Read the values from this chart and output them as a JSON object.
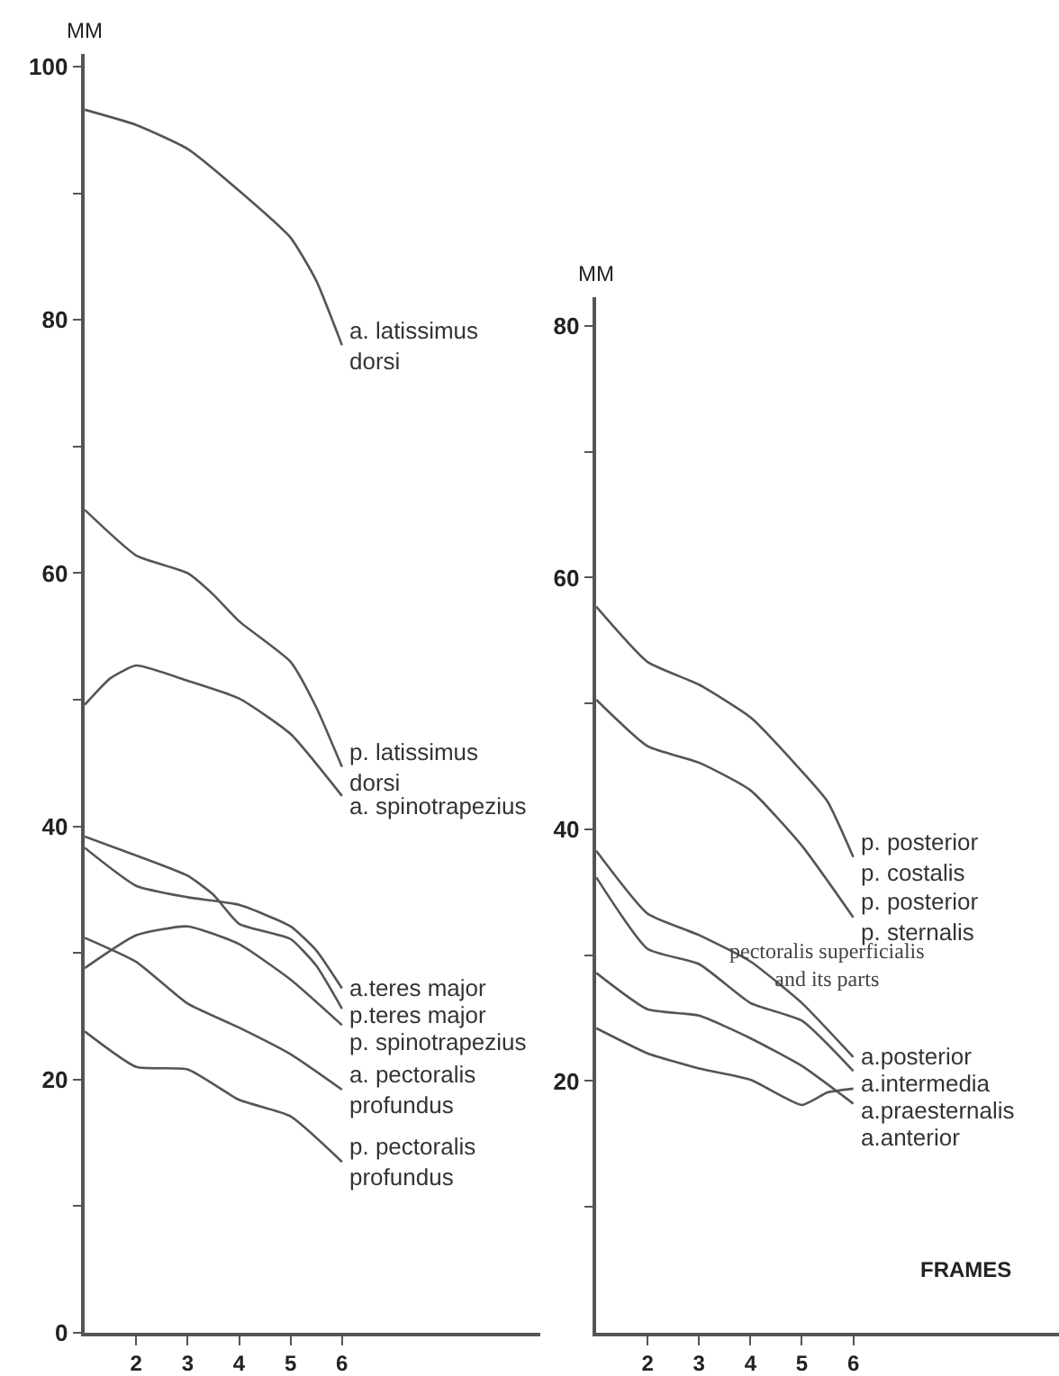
{
  "chart_data": [
    {
      "type": "line",
      "ylabel": "MM",
      "xlim": [
        1,
        9.85
      ],
      "xticks": [
        2,
        3,
        4,
        5,
        6
      ],
      "ylim": [
        0,
        101
      ],
      "yticks": [
        0,
        {
          "value": 10,
          "label": null
        },
        20,
        {
          "value": 30,
          "label": null
        },
        40,
        {
          "value": 50,
          "label": null
        },
        60,
        {
          "value": 70,
          "label": null
        },
        80,
        {
          "value": 90,
          "label": null
        },
        100
      ],
      "series": [
        {
          "name": "a. latissimus\ndorsi",
          "color": "#555555",
          "x": [
            1,
            2,
            3,
            4,
            5,
            5.5,
            6
          ],
          "values": [
            96.6,
            95.4,
            93.5,
            90.2,
            86.5,
            83.1,
            78.0
          ]
        },
        {
          "name": "p. latissimus\ndorsi",
          "color": "#555555",
          "x": [
            1,
            2,
            3,
            3.5,
            4,
            5,
            5.5,
            6
          ],
          "values": [
            65.0,
            61.4,
            60.0,
            58.3,
            56.2,
            53.0,
            49.4,
            44.7
          ]
        },
        {
          "name": "a. spinotrapezius",
          "color": "#555555",
          "x": [
            1,
            1.5,
            2,
            3,
            4,
            5,
            6
          ],
          "values": [
            49.6,
            51.7,
            52.7,
            51.5,
            50.1,
            47.3,
            42.4
          ]
        },
        {
          "name": "a.teres major",
          "color": "#555555",
          "x": [
            1,
            2,
            3,
            4,
            5,
            5.5,
            6
          ],
          "values": [
            38.3,
            35.3,
            34.4,
            33.8,
            32.1,
            30.2,
            27.2
          ]
        },
        {
          "name": "p.teres major",
          "color": "#555555",
          "x": [
            1,
            2,
            3,
            3.5,
            4,
            5,
            5.5,
            6
          ],
          "values": [
            39.2,
            37.7,
            36.1,
            34.6,
            32.3,
            31.1,
            29.0,
            25.6
          ]
        },
        {
          "name": "p. spinotrapezius",
          "color": "#555555",
          "x": [
            1,
            2,
            3,
            4,
            5,
            6
          ],
          "values": [
            28.8,
            31.4,
            32.1,
            30.7,
            27.9,
            24.3
          ]
        },
        {
          "name": "a. pectoralis\nprofundus",
          "color": "#555555",
          "x": [
            1,
            2,
            3,
            4,
            5,
            6
          ],
          "values": [
            31.2,
            29.3,
            26.0,
            24.1,
            22.0,
            19.2
          ]
        },
        {
          "name": "p. pectoralis\nprofundus",
          "color": "#555555",
          "x": [
            1,
            2,
            3,
            4,
            5,
            6
          ],
          "values": [
            23.8,
            21.0,
            20.8,
            18.4,
            17.1,
            13.5
          ]
        }
      ]
    },
    {
      "type": "line",
      "ylabel": "MM",
      "xlabel": "FRAMES",
      "xlim": [
        1,
        10
      ],
      "xticks": [
        2,
        3,
        4,
        5,
        6
      ],
      "ylim": [
        0,
        82.3
      ],
      "yticks": [
        {
          "value": 10,
          "label": null
        },
        20,
        {
          "value": 30,
          "label": null
        },
        40,
        {
          "value": 50,
          "label": null
        },
        60,
        {
          "value": 70,
          "label": null
        },
        80
      ],
      "annotations": [
        "pectoralis superficialis\nand its parts"
      ],
      "series": [
        {
          "name": "p. posterior\np. costalis",
          "color": "#555555",
          "x": [
            1,
            2,
            3,
            4,
            5,
            5.5,
            6
          ],
          "values": [
            57.7,
            53.3,
            51.5,
            48.9,
            44.6,
            42.2,
            37.8
          ]
        },
        {
          "name": "p. posterior\np. sternalis",
          "color": "#555555",
          "x": [
            1,
            2,
            3,
            4,
            5,
            6
          ],
          "values": [
            50.3,
            46.6,
            45.3,
            43.1,
            38.7,
            33.0
          ]
        },
        {
          "name": "a.posterior",
          "color": "#555555",
          "x": [
            1,
            2,
            3,
            4,
            5,
            6
          ],
          "values": [
            38.3,
            33.3,
            31.6,
            29.5,
            26.2,
            21.9
          ]
        },
        {
          "name": "a.intermedia",
          "color": "#555555",
          "x": [
            1,
            2,
            3,
            4,
            5,
            6
          ],
          "values": [
            36.2,
            30.5,
            29.3,
            26.2,
            24.8,
            20.8
          ]
        },
        {
          "name": "a.praesternalis",
          "color": "#555555",
          "x": [
            1,
            2,
            3,
            4,
            5,
            5.5,
            6
          ],
          "values": [
            24.2,
            22.2,
            21.0,
            20.1,
            18.1,
            19.1,
            19.4
          ]
        },
        {
          "name": "a.anterior",
          "color": "#555555",
          "x": [
            1,
            2,
            3,
            4,
            5,
            6
          ],
          "values": [
            28.6,
            25.7,
            25.2,
            23.4,
            21.2,
            18.2
          ]
        }
      ]
    }
  ]
}
